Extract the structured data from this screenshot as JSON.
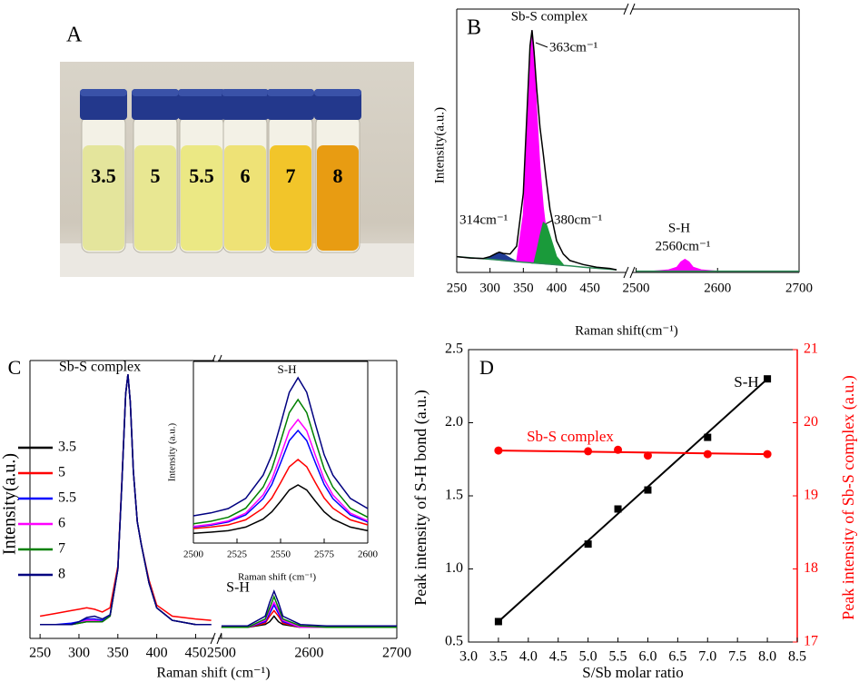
{
  "photo": {
    "panel_label": "A",
    "vial_labels": [
      "3.5",
      "5",
      "5.5",
      "6",
      "7",
      "8"
    ]
  },
  "chart_data": [
    {
      "type": "line",
      "panel_label": "B",
      "x_label": "Raman shift(cm⁻¹)",
      "y_label": "Intensity(a.u.)",
      "x_segments": [
        {
          "xlim": [
            250,
            505
          ],
          "xticks": [
            250,
            300,
            350,
            400,
            450
          ]
        },
        {
          "xlim": [
            2495,
            2700
          ],
          "xticks": [
            2500,
            2600,
            2700
          ]
        }
      ],
      "ylim": [
        0,
        100
      ],
      "x": [
        250,
        270,
        290,
        300,
        310,
        314,
        320,
        330,
        340,
        350,
        355,
        360,
        363,
        366,
        370,
        375,
        380,
        385,
        390,
        400,
        410,
        420,
        440,
        460,
        480,
        490,
        2500,
        2520,
        2540,
        2550,
        2555,
        2560,
        2565,
        2570,
        2580,
        2600,
        2650,
        2700
      ],
      "series": [
        {
          "color": "#2e8b57",
          "values": [
            6,
            5.6,
            5.2,
            5,
            4.8,
            4.7,
            4.5,
            4.3,
            4.1,
            3.9,
            3.8,
            3.7,
            3.6,
            3.6,
            3.5,
            3.4,
            3.3,
            3.2,
            3.1,
            2.9,
            2.7,
            2.5,
            2,
            1.6,
            1.2,
            1,
            0.5,
            0.5,
            0.5,
            0.5,
            0.5,
            0.5,
            0.5,
            0.5,
            0.5,
            0.5,
            0.5,
            0.5
          ]
        },
        {
          "color": "#ff00ff",
          "fill": true,
          "fill_to": 0,
          "values": [
            null,
            null,
            null,
            null,
            null,
            null,
            null,
            null,
            4.5,
            22,
            50,
            78,
            92,
            84,
            62,
            40,
            25,
            14,
            8,
            3.5,
            null,
            null,
            null,
            null,
            null,
            null,
            0.5,
            0.5,
            1,
            2,
            4,
            5,
            4,
            2,
            1,
            0.5,
            0.5,
            0.5
          ]
        },
        {
          "color": "#1a9a3a",
          "fill": true,
          "fill_to": 0,
          "values": [
            null,
            null,
            null,
            null,
            null,
            null,
            null,
            null,
            null,
            null,
            null,
            null,
            null,
            3.8,
            8,
            14,
            19,
            18,
            14,
            6,
            3,
            null,
            null,
            null,
            null,
            null,
            null,
            null,
            null,
            null,
            null,
            null,
            null,
            null,
            null,
            null,
            null,
            null
          ]
        },
        {
          "color": "#1f3a93",
          "fill": true,
          "fill_to": 0,
          "values": [
            null,
            null,
            5.3,
            6,
            7.3,
            7.7,
            7,
            5.5,
            4.2,
            null,
            null,
            null,
            null,
            null,
            null,
            null,
            null,
            null,
            null,
            null,
            null,
            null,
            null,
            null,
            null,
            null,
            null,
            null,
            null,
            null,
            null,
            null,
            null,
            null,
            null,
            null,
            null,
            null
          ]
        },
        {
          "color": "#000000",
          "values": [
            6,
            5.5,
            5.3,
            6,
            7.3,
            7.7,
            7.2,
            7,
            10,
            30,
            58,
            86,
            92,
            84,
            70,
            55,
            45,
            34,
            24,
            12,
            7,
            4.5,
            3,
            2,
            1.5,
            1,
            null,
            null,
            null,
            null,
            null,
            null,
            null,
            null,
            null,
            null,
            null,
            null
          ]
        }
      ],
      "annotations": [
        "Sb-S complex",
        "363cm⁻¹",
        "314cm⁻¹",
        "380cm⁻¹",
        "S-H",
        "2560cm⁻¹"
      ]
    },
    {
      "type": "line",
      "panel_label": "C",
      "x_label": "Raman shift (cm⁻¹)",
      "y_label": "Intensity(a.u.)",
      "x_segments": [
        {
          "xlim": [
            237,
            474
          ],
          "xticks": [
            250,
            300,
            350,
            400,
            450
          ]
        },
        {
          "xlim": [
            2496,
            2700
          ],
          "xticks": [
            2500,
            2600,
            2700
          ]
        }
      ],
      "ylim": [
        0,
        100
      ],
      "x": [
        250,
        270,
        290,
        300,
        310,
        320,
        330,
        340,
        350,
        355,
        360,
        363,
        366,
        370,
        375,
        380,
        390,
        400,
        420,
        450,
        470,
        2500,
        2530,
        2550,
        2555,
        2560,
        2565,
        2570,
        2590,
        2620,
        2660,
        2700
      ],
      "series": [
        {
          "name": "3.5",
          "color": "#000000",
          "values": [
            5,
            5,
            5,
            5.5,
            6,
            6,
            6,
            8,
            25,
            55,
            88,
            95,
            85,
            60,
            42,
            34,
            20,
            11,
            6.5,
            5,
            5,
            4,
            4,
            5,
            6,
            8,
            6,
            5,
            4,
            4,
            4,
            4
          ]
        },
        {
          "name": "5",
          "color": "#ff0000",
          "values": [
            8,
            9,
            10,
            10.5,
            11,
            10.5,
            9.5,
            11,
            26,
            56,
            88,
            95,
            85,
            60,
            42,
            34,
            21,
            12,
            8,
            7,
            6.5,
            4,
            4,
            5.5,
            8,
            10,
            8,
            5.5,
            4,
            4,
            4,
            4
          ]
        },
        {
          "name": "5.5",
          "color": "#0000ff",
          "values": [
            5,
            5,
            5.5,
            6,
            7,
            7,
            6.5,
            8,
            25,
            55,
            88,
            95,
            85,
            60,
            42,
            34,
            20,
            11,
            6.5,
            5,
            5,
            4,
            4,
            6,
            9,
            12,
            9,
            6,
            4,
            4,
            4,
            4
          ]
        },
        {
          "name": "6",
          "color": "#ff00ff",
          "values": [
            5,
            5,
            5,
            5.5,
            6.5,
            6.5,
            6,
            8,
            25,
            55,
            88,
            95,
            85,
            60,
            42,
            34,
            20,
            11,
            6.5,
            5,
            5,
            4,
            4,
            6.5,
            10,
            13,
            10,
            6.5,
            4,
            4,
            4,
            4
          ]
        },
        {
          "name": "7",
          "color": "#008000",
          "values": [
            5,
            5,
            5,
            5.5,
            6,
            6,
            6,
            8,
            25,
            55,
            88,
            95,
            85,
            60,
            42,
            34,
            20,
            11,
            6.5,
            5,
            5,
            4,
            4,
            7,
            11,
            15,
            11,
            7,
            4.5,
            4,
            4,
            4
          ]
        },
        {
          "name": "8",
          "color": "#000080",
          "values": [
            5,
            5,
            5,
            6,
            7.5,
            8,
            7,
            8.5,
            25,
            55,
            88,
            95,
            85,
            60,
            42,
            34,
            20,
            11,
            6.5,
            5,
            5,
            4.5,
            4.5,
            8,
            13,
            17,
            13,
            8,
            5,
            4.5,
            4.5,
            4.5
          ]
        }
      ],
      "annotations": [
        "Sb-S complex",
        "S-H"
      ]
    },
    {
      "type": "line",
      "x_label": "Raman shift (cm⁻¹)",
      "y_label": "Intensity (a.u.)",
      "xlim": [
        2500,
        2600
      ],
      "xticks": [
        2500,
        2525,
        2550,
        2575,
        2600
      ],
      "ylim": [
        0,
        100
      ],
      "x": [
        2500,
        2510,
        2520,
        2530,
        2540,
        2545,
        2550,
        2555,
        2560,
        2565,
        2570,
        2575,
        2580,
        2590,
        2600
      ],
      "series": [
        {
          "color": "#000000",
          "values": [
            5.4,
            6,
            6.8,
            8.8,
            13.2,
            17.2,
            23,
            29.2,
            32,
            29.2,
            23,
            17.2,
            13.2,
            8.8,
            6.8
          ]
        },
        {
          "color": "#ff0000",
          "values": [
            8,
            8.8,
            10,
            12.8,
            19.2,
            24.8,
            33.2,
            42,
            46,
            42,
            33.2,
            24.8,
            19.2,
            12.8,
            10
          ]
        },
        {
          "color": "#0000ff",
          "values": [
            8.8,
            9.9,
            11.6,
            15.5,
            24.5,
            32.3,
            44.1,
            56.4,
            62,
            56.4,
            44.1,
            32.3,
            24.5,
            15.5,
            11.6
          ]
        },
        {
          "color": "#ff00ff",
          "values": [
            9.1,
            10.3,
            12.2,
            16.5,
            26.5,
            35.1,
            48.2,
            61.8,
            68,
            61.8,
            48.2,
            35.1,
            26.5,
            16.5,
            12.2
          ]
        },
        {
          "color": "#008000",
          "values": [
            10.6,
            12,
            14.2,
            19.2,
            30.8,
            40.8,
            56,
            71.8,
            79,
            71.8,
            56,
            40.8,
            30.8,
            19.2,
            14.2
          ]
        },
        {
          "color": "#000080",
          "values": [
            15,
            16.6,
            19,
            24.6,
            37.4,
            48.6,
            65.4,
            83,
            91,
            83,
            65.4,
            48.6,
            37.4,
            24.6,
            19
          ]
        }
      ],
      "annotations": [
        "S-H"
      ]
    },
    {
      "type": "scatter",
      "panel_label": "D",
      "x_label": "S/Sb molar ratio",
      "y_label": "Peak intensity of S-H bond (a.u.)",
      "y2_label": "Peak intensity of Sb-S complex (a.u.)",
      "xlim": [
        3,
        8.5
      ],
      "xticks": [
        {
          "value": 3,
          "label": "3.0"
        },
        3.5,
        {
          "value": 4,
          "label": "4.0"
        },
        4.5,
        {
          "value": 5,
          "label": "5.0"
        },
        5.5,
        {
          "value": 6,
          "label": "6.0"
        },
        6.5,
        {
          "value": 7,
          "label": "7.0"
        },
        7.5,
        {
          "value": 8,
          "label": "8.0"
        },
        8.5
      ],
      "ylim": [
        0.5,
        2.5
      ],
      "yticks": [
        0.5,
        {
          "value": 1,
          "label": "1.0"
        },
        1.5,
        {
          "value": 2,
          "label": "2.0"
        },
        2.5
      ],
      "y2lim": [
        17,
        21
      ],
      "y2ticks": [
        17,
        18,
        19,
        20,
        21
      ],
      "y2_color": "#ff0000",
      "series": [
        {
          "color": "#000000",
          "line": true,
          "x": [
            3.5,
            8.0
          ],
          "values": [
            0.64,
            2.3
          ]
        },
        {
          "color": "#000000",
          "marker": "square",
          "x": [
            3.5,
            5.0,
            5.5,
            6.0,
            7.0,
            8.0
          ],
          "values": [
            0.64,
            1.17,
            1.41,
            1.54,
            1.9,
            2.3
          ]
        },
        {
          "color": "#ff0000",
          "line": true,
          "axis": "y2",
          "x": [
            3.5,
            8.0
          ],
          "values": [
            19.62,
            19.57
          ]
        },
        {
          "color": "#ff0000",
          "marker": "circle",
          "axis": "y2",
          "x": [
            3.5,
            5.0,
            5.5,
            6.0,
            7.0,
            8.0
          ],
          "values": [
            19.62,
            19.61,
            19.63,
            19.55,
            19.57,
            19.57
          ]
        }
      ],
      "annotations": [
        "S-H",
        "Sb-S complex"
      ]
    }
  ]
}
